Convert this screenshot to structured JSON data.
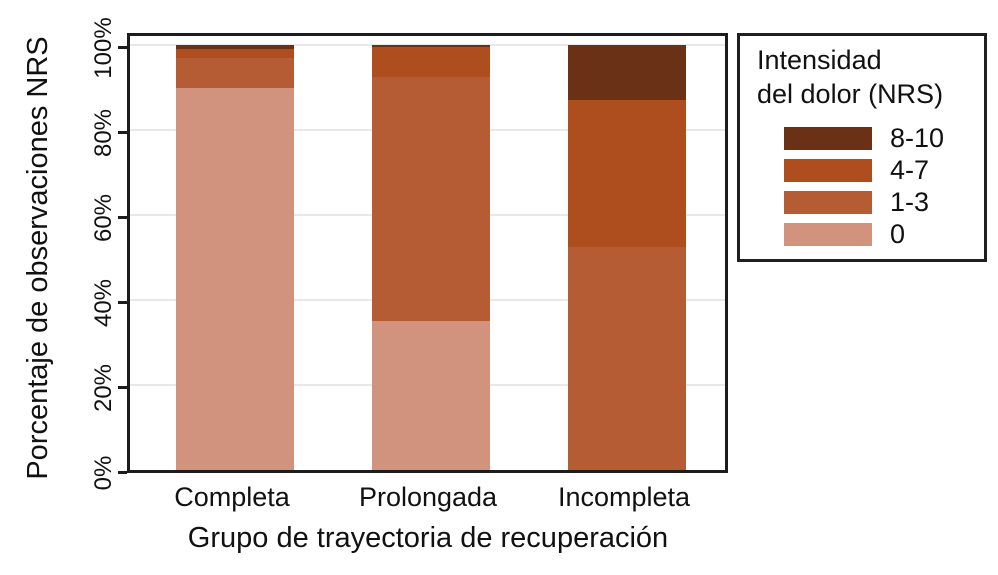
{
  "chart_data": {
    "type": "bar",
    "stacked": true,
    "x_title": "Grupo de trayectoria de recuperación",
    "y_title": "Porcentaje de observaciones NRS",
    "categories": [
      "Completa",
      "Prolongada",
      "Incompleta"
    ],
    "series": [
      {
        "name": "8-10",
        "color": "#6a3117",
        "values": [
          1,
          0.5,
          13
        ]
      },
      {
        "name": "4-7",
        "color": "#ae4d1e",
        "values": [
          2,
          7,
          34.5
        ]
      },
      {
        "name": "1-3",
        "color": "#b55c34",
        "values": [
          7,
          57.5,
          52.5
        ]
      },
      {
        "name": "0",
        "color": "#d2937e",
        "values": [
          90,
          35,
          0
        ]
      }
    ],
    "y_ticks": [
      "0%",
      "20%",
      "40%",
      "60%",
      "80%",
      "100%"
    ],
    "y_tick_values": [
      0,
      20,
      40,
      60,
      80,
      100
    ],
    "ylim": [
      0,
      100
    ],
    "grid": true,
    "legend": {
      "title_line1": "Intensidad",
      "title_line2": "del dolor (NRS)",
      "position": "right"
    }
  },
  "colors": {
    "grid": "#e8e8e8",
    "axis": "#1c1c1c",
    "background": "#ffffff"
  }
}
